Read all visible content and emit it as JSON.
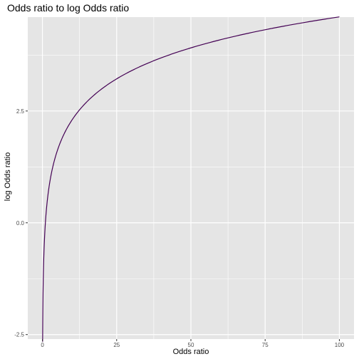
{
  "chart_data": {
    "type": "line",
    "title": "Odds ratio to log Odds ratio",
    "xlabel": "Odds ratio",
    "ylabel": "log Odds ratio",
    "x_function": "log",
    "x_range": [
      0.07,
      100
    ],
    "xlim": [
      -4.93,
      104.93
    ],
    "ylim": [
      -2.6,
      4.6
    ],
    "x_ticks": [
      0,
      25,
      50,
      75,
      100
    ],
    "x_tick_labels": [
      "0",
      "25",
      "50",
      "75",
      "100"
    ],
    "y_ticks": [
      -2.5,
      0.0,
      2.5
    ],
    "y_tick_labels": [
      "-2.5",
      "0.0",
      "2.5"
    ],
    "series": [
      {
        "color": "#440154"
      }
    ],
    "grid": true,
    "panel_background": "#e5e5e5",
    "grid_color": "#ffffff"
  }
}
